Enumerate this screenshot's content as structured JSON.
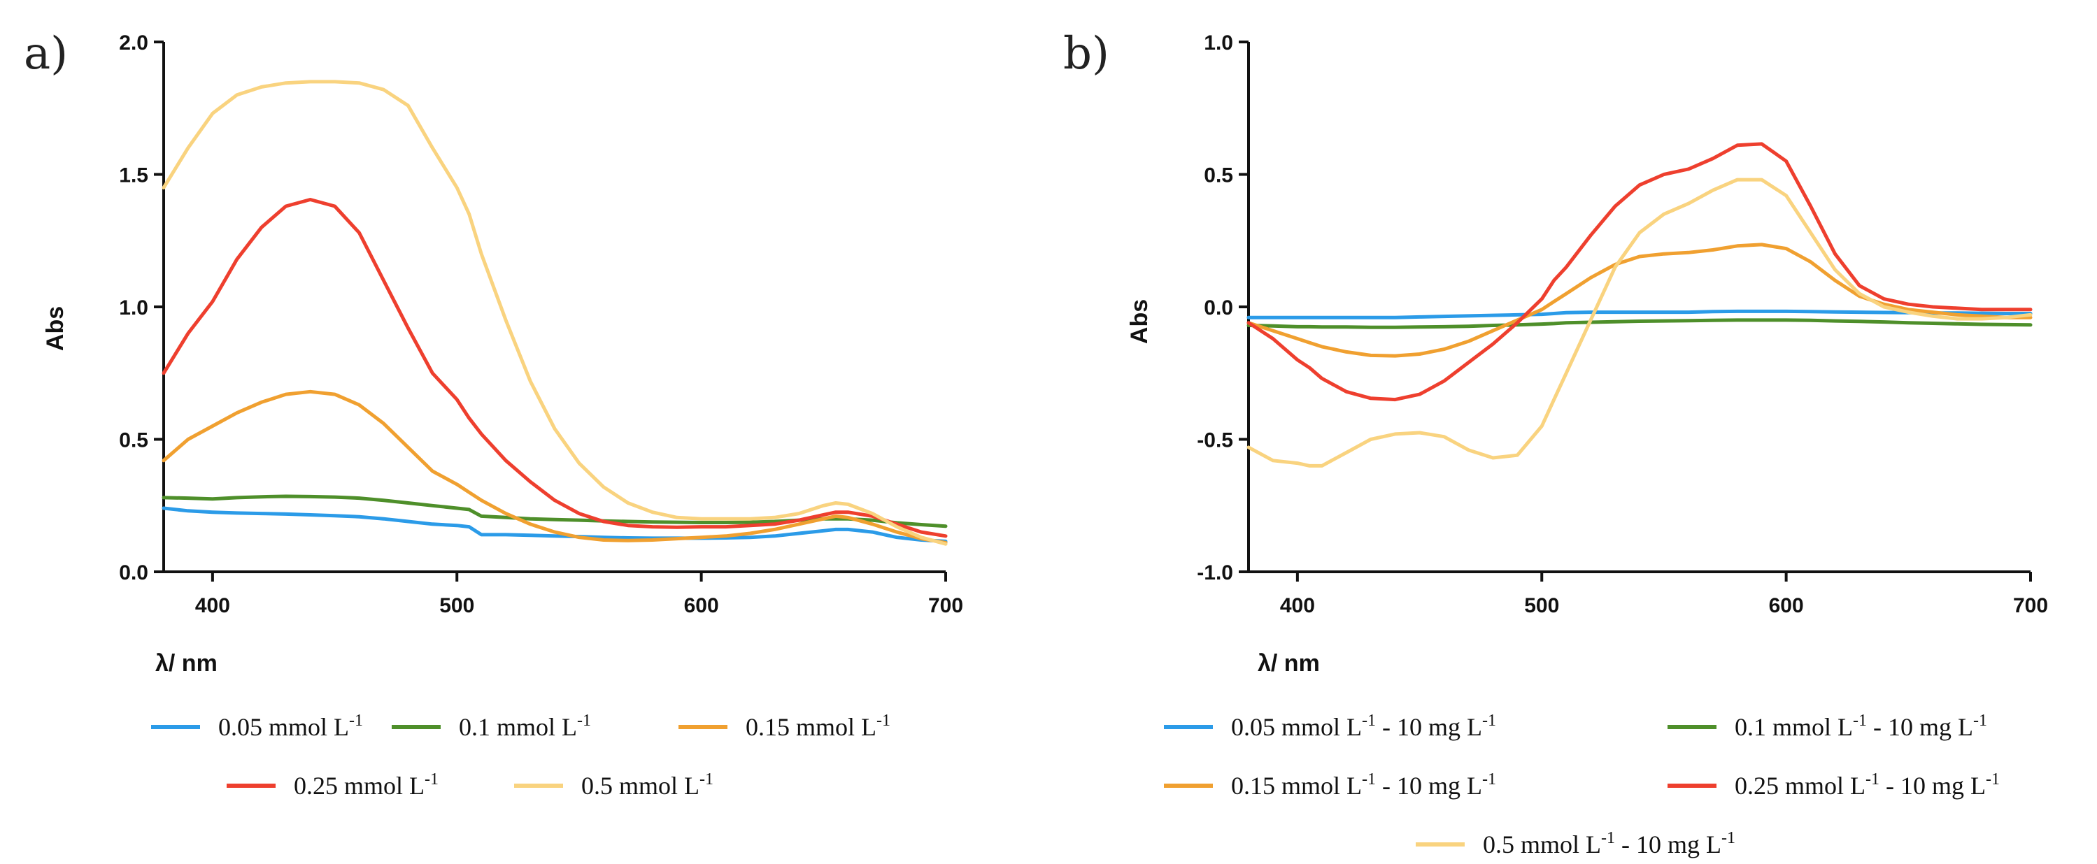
{
  "chart_data": [
    {
      "type": "line",
      "panel_label": "a)",
      "xlabel": "λ/ nm",
      "ylabel": "Abs",
      "xlim": [
        380,
        700
      ],
      "ylim": [
        0,
        2
      ],
      "xticks": [
        400,
        500,
        600,
        700
      ],
      "xtick_labels": [
        "400",
        "500",
        "600",
        "700"
      ],
      "yticks": [
        0,
        0.5,
        1,
        1.5,
        2
      ],
      "ytick_labels": [
        "0.0",
        "0.5",
        "1.0",
        "1.5",
        "2.0"
      ],
      "x": [
        380,
        390,
        400,
        410,
        420,
        430,
        440,
        450,
        460,
        470,
        480,
        490,
        500,
        505,
        510,
        520,
        530,
        540,
        550,
        560,
        570,
        580,
        590,
        600,
        610,
        620,
        630,
        640,
        650,
        655,
        660,
        670,
        680,
        690,
        700
      ],
      "series": [
        {
          "name": "0.05 mmol L-1",
          "legend_main": "0.05 mmol L",
          "legend_sup": "-1",
          "color": "#2b9be8",
          "values": [
            0.24,
            0.23,
            0.225,
            0.222,
            0.22,
            0.218,
            0.215,
            0.212,
            0.208,
            0.2,
            0.19,
            0.18,
            0.175,
            0.17,
            0.14,
            0.14,
            0.138,
            0.135,
            0.133,
            0.13,
            0.128,
            0.127,
            0.127,
            0.127,
            0.128,
            0.13,
            0.135,
            0.145,
            0.155,
            0.16,
            0.16,
            0.15,
            0.13,
            0.12,
            0.115
          ]
        },
        {
          "name": "0.1 mmol L-1",
          "legend_main": "0.1 mmol L",
          "legend_sup": "-1",
          "color": "#4e8f2a",
          "values": [
            0.28,
            0.278,
            0.275,
            0.28,
            0.283,
            0.285,
            0.284,
            0.282,
            0.278,
            0.27,
            0.26,
            0.25,
            0.24,
            0.235,
            0.21,
            0.205,
            0.2,
            0.197,
            0.195,
            0.192,
            0.19,
            0.188,
            0.187,
            0.186,
            0.186,
            0.187,
            0.19,
            0.195,
            0.2,
            0.2,
            0.2,
            0.195,
            0.185,
            0.178,
            0.172
          ]
        },
        {
          "name": "0.15 mmol L-1",
          "legend_main": "0.15 mmol L",
          "legend_sup": "-1",
          "color": "#f0a030",
          "values": [
            0.42,
            0.5,
            0.55,
            0.6,
            0.64,
            0.67,
            0.68,
            0.67,
            0.63,
            0.56,
            0.47,
            0.38,
            0.33,
            0.3,
            0.27,
            0.22,
            0.18,
            0.15,
            0.13,
            0.12,
            0.118,
            0.12,
            0.125,
            0.13,
            0.135,
            0.145,
            0.16,
            0.18,
            0.2,
            0.21,
            0.205,
            0.18,
            0.15,
            0.125,
            0.11
          ]
        },
        {
          "name": "0.25 mmol L-1",
          "legend_main": "0.25 mmol L",
          "legend_sup": "-1",
          "color": "#ee3f2e",
          "values": [
            0.75,
            0.9,
            1.02,
            1.18,
            1.3,
            1.38,
            1.405,
            1.38,
            1.28,
            1.1,
            0.92,
            0.75,
            0.65,
            0.58,
            0.52,
            0.42,
            0.34,
            0.27,
            0.22,
            0.19,
            0.175,
            0.17,
            0.168,
            0.17,
            0.17,
            0.175,
            0.18,
            0.195,
            0.215,
            0.225,
            0.225,
            0.21,
            0.18,
            0.15,
            0.135
          ]
        },
        {
          "name": "0.5 mmol L-1",
          "legend_main": "0.5 mmol L",
          "legend_sup": "-1",
          "color": "#f9d37f",
          "values": [
            1.45,
            1.6,
            1.73,
            1.8,
            1.83,
            1.845,
            1.85,
            1.85,
            1.845,
            1.82,
            1.76,
            1.6,
            1.45,
            1.35,
            1.2,
            0.95,
            0.72,
            0.54,
            0.41,
            0.32,
            0.26,
            0.225,
            0.205,
            0.2,
            0.2,
            0.2,
            0.205,
            0.22,
            0.25,
            0.26,
            0.255,
            0.22,
            0.17,
            0.13,
            0.105
          ]
        }
      ]
    },
    {
      "type": "line",
      "panel_label": "b)",
      "xlabel": "λ/ nm",
      "ylabel": "Abs",
      "xlim": [
        380,
        700
      ],
      "ylim": [
        -1,
        1
      ],
      "xticks": [
        400,
        500,
        600,
        700
      ],
      "xtick_labels": [
        "400",
        "500",
        "600",
        "700"
      ],
      "yticks": [
        -1,
        -0.5,
        0,
        0.5,
        1
      ],
      "ytick_labels": [
        "-1.0",
        "-0.5",
        "0.0",
        "0.5",
        "1.0"
      ],
      "x": [
        380,
        390,
        400,
        405,
        410,
        420,
        430,
        440,
        450,
        460,
        470,
        480,
        490,
        500,
        505,
        510,
        520,
        530,
        540,
        550,
        560,
        570,
        580,
        590,
        600,
        610,
        620,
        630,
        640,
        650,
        660,
        670,
        680,
        690,
        700
      ],
      "series": [
        {
          "name": "0.05 mmol L-1 - 10 mg L-1",
          "legend_main": "0.05 mmol L",
          "legend_sup": "-1",
          "legend_tail": " - 10 mg L",
          "legend_sup2": "-1",
          "color": "#2b9be8",
          "values": [
            -0.04,
            -0.04,
            -0.04,
            -0.04,
            -0.04,
            -0.04,
            -0.04,
            -0.04,
            -0.038,
            -0.036,
            -0.034,
            -0.032,
            -0.03,
            -0.028,
            -0.025,
            -0.022,
            -0.02,
            -0.02,
            -0.02,
            -0.02,
            -0.02,
            -0.018,
            -0.017,
            -0.017,
            -0.017,
            -0.018,
            -0.019,
            -0.02,
            -0.021,
            -0.022,
            -0.023,
            -0.023,
            -0.024,
            -0.025,
            -0.025
          ]
        },
        {
          "name": "0.1 mmol L-1 - 10 mg L-1",
          "legend_main": "0.1 mmol L",
          "legend_sup": "-1",
          "legend_tail": " - 10 mg L",
          "legend_sup2": "-1",
          "color": "#4e8f2a",
          "values": [
            -0.07,
            -0.072,
            -0.075,
            -0.075,
            -0.076,
            -0.076,
            -0.077,
            -0.077,
            -0.076,
            -0.075,
            -0.073,
            -0.07,
            -0.068,
            -0.065,
            -0.063,
            -0.06,
            -0.058,
            -0.056,
            -0.054,
            -0.053,
            -0.052,
            -0.051,
            -0.05,
            -0.05,
            -0.05,
            -0.051,
            -0.053,
            -0.055,
            -0.057,
            -0.06,
            -0.062,
            -0.064,
            -0.066,
            -0.067,
            -0.068
          ]
        },
        {
          "name": "0.15 mmol L-1 - 10 mg L-1",
          "legend_main": "0.15 mmol L",
          "legend_sup": "-1",
          "legend_tail": " - 10 mg L",
          "legend_sup2": "-1",
          "color": "#f0a030",
          "values": [
            -0.06,
            -0.09,
            -0.12,
            -0.135,
            -0.15,
            -0.17,
            -0.183,
            -0.185,
            -0.178,
            -0.16,
            -0.13,
            -0.09,
            -0.05,
            -0.01,
            0.02,
            0.05,
            0.11,
            0.16,
            0.19,
            0.2,
            0.205,
            0.215,
            0.23,
            0.235,
            0.22,
            0.17,
            0.1,
            0.04,
            0.01,
            -0.01,
            -0.02,
            -0.03,
            -0.035,
            -0.04,
            -0.04
          ]
        },
        {
          "name": "0.25 mmol L-1 - 10 mg L-1",
          "legend_main": "0.25 mmol L",
          "legend_sup": "-1",
          "legend_tail": " - 10 mg L",
          "legend_sup2": "-1",
          "color": "#ee3f2e",
          "values": [
            -0.06,
            -0.12,
            -0.2,
            -0.23,
            -0.27,
            -0.32,
            -0.345,
            -0.35,
            -0.33,
            -0.28,
            -0.21,
            -0.14,
            -0.06,
            0.03,
            0.1,
            0.15,
            0.27,
            0.38,
            0.46,
            0.5,
            0.52,
            0.56,
            0.61,
            0.615,
            0.55,
            0.38,
            0.2,
            0.08,
            0.03,
            0.01,
            0.0,
            -0.005,
            -0.01,
            -0.01,
            -0.01
          ]
        },
        {
          "name": "0.5 mmol L-1 - 10 mg L-1",
          "legend_main": "0.5 mmol L",
          "legend_sup": "-1",
          "legend_tail": " - 10 mg L",
          "legend_sup2": "-1",
          "color": "#f9d37f",
          "values": [
            -0.53,
            -0.58,
            -0.59,
            -0.6,
            -0.6,
            -0.55,
            -0.5,
            -0.48,
            -0.475,
            -0.49,
            -0.54,
            -0.57,
            -0.56,
            -0.45,
            -0.35,
            -0.25,
            -0.05,
            0.15,
            0.28,
            0.35,
            0.39,
            0.44,
            0.48,
            0.48,
            0.42,
            0.28,
            0.14,
            0.05,
            0.0,
            -0.02,
            -0.035,
            -0.045,
            -0.045,
            -0.04,
            -0.03
          ]
        }
      ]
    }
  ]
}
